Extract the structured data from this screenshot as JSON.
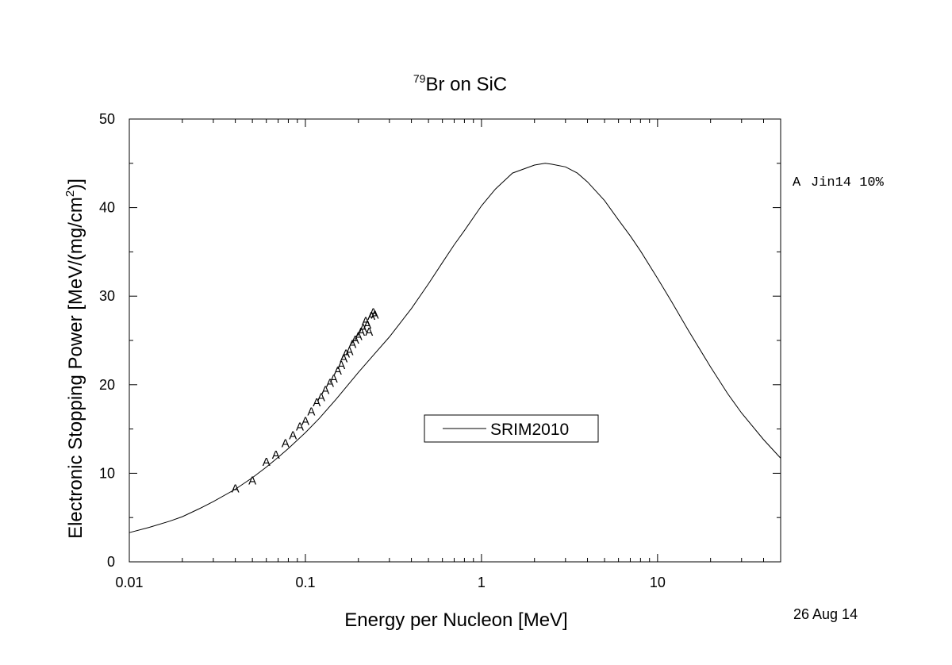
{
  "chart_data": {
    "type": "line",
    "title_prefix": "79",
    "title_main": "Br on SiC",
    "xlabel": "Energy per Nucleon [MeV]",
    "ylabel_main": "Electronic Stopping Power [MeV/(mg/cm",
    "ylabel_sup": "2",
    "ylabel_end": ")]",
    "x_scale": "log",
    "xlim": [
      0.01,
      50
    ],
    "ylim": [
      0,
      50
    ],
    "x_ticks": [
      {
        "value": 0.01,
        "label": "0.01"
      },
      {
        "value": 0.1,
        "label": "0.1"
      },
      {
        "value": 1,
        "label": "1"
      },
      {
        "value": 10,
        "label": "10"
      }
    ],
    "y_ticks": [
      {
        "value": 0,
        "label": "0"
      },
      {
        "value": 10,
        "label": "10"
      },
      {
        "value": 20,
        "label": "20"
      },
      {
        "value": 30,
        "label": "30"
      },
      {
        "value": 40,
        "label": "40"
      },
      {
        "value": 50,
        "label": "50"
      }
    ],
    "series": [
      {
        "name": "SRIM2010",
        "kind": "line",
        "color": "#000000",
        "x": [
          0.01,
          0.013,
          0.017,
          0.02,
          0.025,
          0.03,
          0.04,
          0.05,
          0.06,
          0.07,
          0.08,
          0.1,
          0.12,
          0.15,
          0.2,
          0.25,
          0.3,
          0.4,
          0.5,
          0.6,
          0.7,
          0.8,
          1.0,
          1.2,
          1.5,
          2.0,
          2.3,
          2.5,
          3.0,
          3.5,
          4.0,
          5.0,
          6.0,
          7.0,
          8.0,
          10,
          12,
          15,
          20,
          25,
          30,
          40,
          50
        ],
        "y": [
          3.3,
          3.9,
          4.6,
          5.1,
          6.0,
          6.8,
          8.2,
          9.5,
          10.7,
          11.8,
          12.8,
          14.6,
          16.2,
          18.4,
          21.4,
          23.6,
          25.4,
          28.6,
          31.4,
          33.8,
          35.8,
          37.4,
          40.2,
          42.1,
          43.9,
          44.8,
          45.0,
          44.9,
          44.6,
          43.9,
          42.9,
          40.8,
          38.6,
          36.8,
          35.1,
          32.0,
          29.4,
          26.1,
          22.0,
          19.0,
          16.8,
          13.8,
          11.7
        ]
      },
      {
        "name": "Jin14 10%",
        "symbol": "A",
        "kind": "markers",
        "color": "#000000",
        "x": [
          0.04,
          0.05,
          0.06,
          0.068,
          0.077,
          0.085,
          0.093,
          0.1,
          0.108,
          0.116,
          0.123,
          0.13,
          0.138,
          0.145,
          0.153,
          0.16,
          0.165,
          0.17,
          0.178,
          0.185,
          0.192,
          0.2,
          0.207,
          0.213,
          0.22,
          0.225,
          0.23,
          0.237,
          0.243,
          0.248
        ],
        "y": [
          8.3,
          9.2,
          11.3,
          12.1,
          13.4,
          14.3,
          15.3,
          15.9,
          17.0,
          18.0,
          18.6,
          19.4,
          20.2,
          20.7,
          21.6,
          22.2,
          23.0,
          23.5,
          23.8,
          24.6,
          25.1,
          25.5,
          26.0,
          26.4,
          27.2,
          26.8,
          26.0,
          27.8,
          28.2,
          27.9
        ]
      }
    ],
    "legend": {
      "placement": "center",
      "label": "SRIM2010"
    },
    "side_legend": {
      "placement": "right",
      "symbol": "A",
      "label": "Jin14 10%"
    },
    "date_label": "26 Aug 14",
    "grid": false
  }
}
